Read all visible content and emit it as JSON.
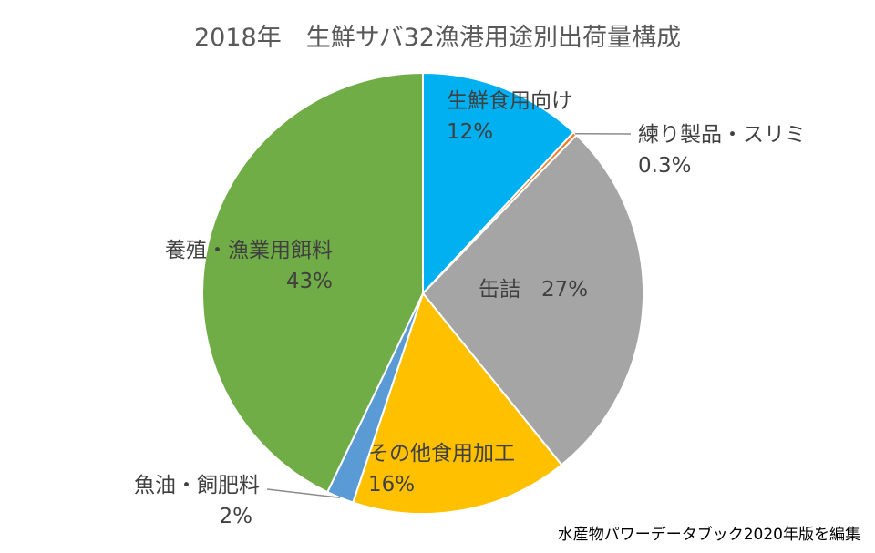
{
  "chart_data": {
    "type": "pie",
    "title": "2018年　生鮮サバ32漁港用途別出荷量構成",
    "categories": [
      "生鮮食用向け",
      "練り製品・スリミ",
      "缶詰",
      "その他食用加工",
      "魚油・飼肥料",
      "養殖・漁業用餌料"
    ],
    "values": [
      12,
      0.3,
      27,
      16,
      2,
      43
    ],
    "labels": [
      {
        "name": "生鮮食用向け",
        "value_label": "12%"
      },
      {
        "name": "練り製品・スリミ",
        "value_label": "0.3%"
      },
      {
        "name": "缶詰",
        "value_label": "27%"
      },
      {
        "name": "その他食用加工",
        "value_label": "16%"
      },
      {
        "name": "魚油・飼肥料",
        "value_label": "2%"
      },
      {
        "name": "養殖・漁業用餌料",
        "value_label": "43%"
      }
    ],
    "colors": [
      "#00b0f0",
      "#ed7d31",
      "#a5a5a5",
      "#ffc000",
      "#5b9bd5",
      "#70ad47"
    ],
    "source_note": "水産物パワーデータブック2020年版を編集"
  }
}
